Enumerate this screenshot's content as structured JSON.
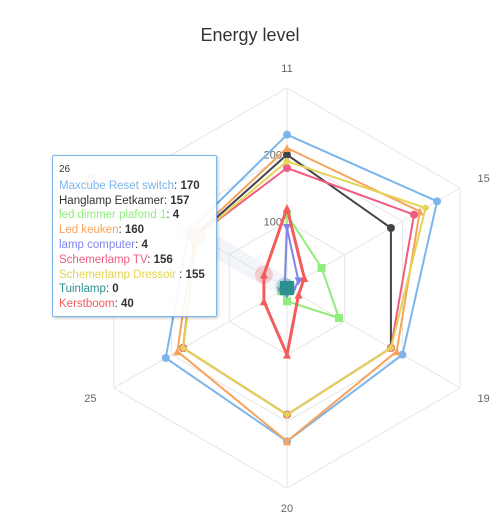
{
  "chart_data": {
    "type": "radar",
    "title": "Energy level",
    "categories": [
      "11",
      "15",
      "19",
      "20",
      "25",
      "26"
    ],
    "rlim": [
      0,
      300
    ],
    "radial_ticks": [
      100,
      200
    ],
    "series": [
      {
        "name": "Maxcube Reset switch",
        "color": "#7cb5ec",
        "marker": "circle",
        "values": [
          230,
          260,
          200,
          230,
          210,
          170
        ]
      },
      {
        "name": "Hanglamp Eetkamer",
        "color": "#434348",
        "marker": "circle",
        "values": [
          200,
          180,
          180,
          190,
          180,
          157
        ]
      },
      {
        "name": "led dimmer plafond 1",
        "color": "#90ed7d",
        "marker": "square",
        "values": [
          110,
          60,
          90,
          20,
          10,
          4
        ]
      },
      {
        "name": "Led keuken",
        "color": "#f7a35c",
        "marker": "triangle",
        "values": [
          210,
          230,
          190,
          230,
          190,
          160
        ]
      },
      {
        "name": "lamp computer",
        "color": "#8085e9",
        "marker": "triangle-down",
        "values": [
          90,
          20,
          10,
          10,
          10,
          4
        ]
      },
      {
        "name": "Schemerlamp TV",
        "color": "#f15c80",
        "marker": "circle",
        "values": [
          180,
          220,
          180,
          190,
          180,
          156
        ]
      },
      {
        "name": "Schemerlamp Dressoir",
        "color": "#e4d354",
        "marker": "diamond",
        "values": [
          190,
          240,
          180,
          190,
          180,
          155
        ]
      },
      {
        "name": "Tuinlamp",
        "color": "#2b908f",
        "marker": "square",
        "values": [
          0,
          0,
          0,
          0,
          0,
          0
        ]
      },
      {
        "name": "Kerstboom",
        "color": "#f45b5b",
        "marker": "triangle",
        "values": [
          120,
          30,
          20,
          100,
          40,
          40
        ]
      }
    ],
    "tooltip": {
      "header": "26",
      "rows": [
        {
          "name": "Maxcube Reset switch",
          "value": "170",
          "color": "#7cb5ec"
        },
        {
          "name": "Hanglamp Eetkamer",
          "value": "157",
          "color": "#333333"
        },
        {
          "name": " led dimmer plafond 1",
          "value": "4",
          "color": "#90ed7d"
        },
        {
          "name": "Led keuken",
          "value": "160",
          "color": "#f7a35c"
        },
        {
          "name": "lamp computer",
          "value": "4",
          "color": "#8085e9"
        },
        {
          "name": "Schemerlamp TV",
          "value": "156",
          "color": "#f15c80"
        },
        {
          "name": "Schemerlamp Dressoir ",
          "value": "155",
          "color": "#e4d354"
        },
        {
          "name": "Tuinlamp",
          "value": "0",
          "color": "#2b908f"
        },
        {
          "name": "Kerstboom",
          "value": "40",
          "color": "#f45b5b"
        }
      ]
    },
    "grid_color": "#e6e6e6",
    "highlighted_category": "26"
  }
}
